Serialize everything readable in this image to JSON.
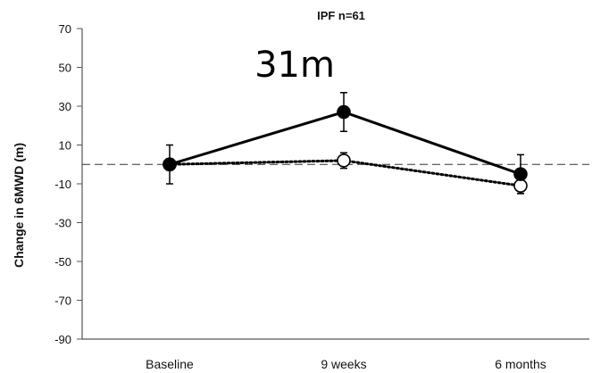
{
  "chart_data": {
    "type": "line",
    "title": "IPF n=61",
    "annotation": "31m",
    "xlabel": "",
    "ylabel": "Change in 6MWD (m)",
    "categories": [
      "Baseline",
      "9 weeks",
      "6 months"
    ],
    "ylim": [
      -90,
      70
    ],
    "yticks": [
      70,
      50,
      30,
      10,
      -10,
      -30,
      -50,
      -70,
      -90
    ],
    "reference_line": 0,
    "grid": false,
    "series": [
      {
        "values": [
          0,
          27,
          -5
        ],
        "error": [
          10,
          10,
          10
        ],
        "marker": "filled-circle",
        "line": "solid",
        "color": "#000000"
      },
      {
        "values": [
          0,
          2,
          -11
        ],
        "error": [
          3,
          4,
          4
        ],
        "marker": "open-circle",
        "line": "dotted",
        "color": "#000000"
      }
    ]
  }
}
